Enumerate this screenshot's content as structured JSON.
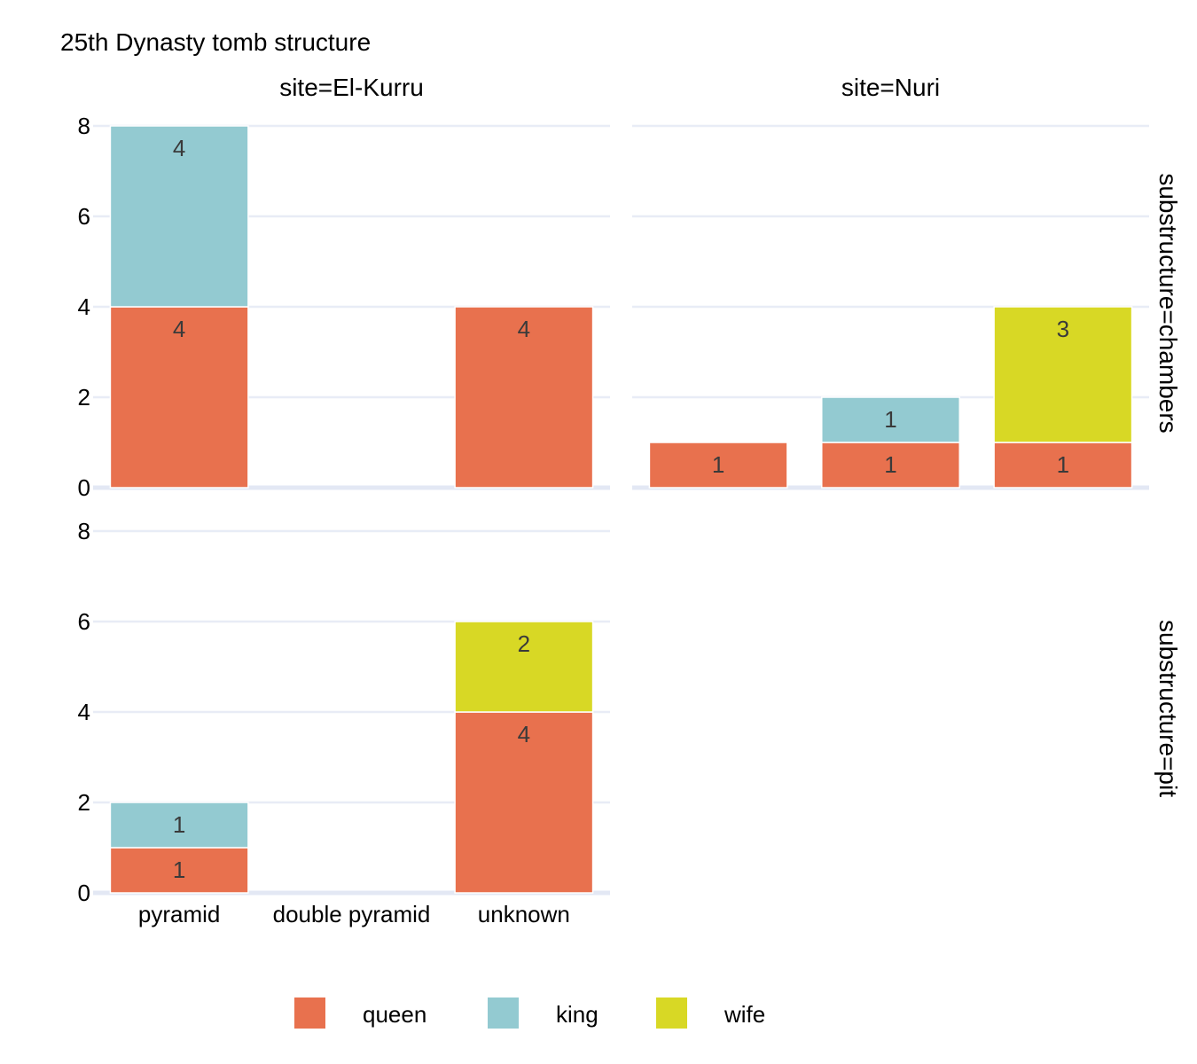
{
  "chart_data": {
    "type": "bar",
    "title": "25th Dynasty tomb structure",
    "stacked": true,
    "grid": true,
    "legend_position": "bottom",
    "categories": [
      "pyramid",
      "double pyramid",
      "unknown"
    ],
    "series_names": [
      "queen",
      "king",
      "wife"
    ],
    "colors": {
      "queen": "#e8714e",
      "king": "#93cad1",
      "wife": "#d8d825"
    },
    "ylim": [
      0,
      8
    ],
    "yticks": [
      0,
      2,
      4,
      6,
      8
    ],
    "columns": [
      {
        "label": "site=El-Kurru"
      },
      {
        "label": "site=Nuri"
      }
    ],
    "rows": [
      {
        "label": "substructure=chambers"
      },
      {
        "label": "substructure=pit"
      }
    ],
    "panels": [
      {
        "site": "site=El-Kurru",
        "substructure": "substructure=chambers",
        "series": [
          {
            "name": "queen",
            "values": [
              4,
              0,
              4
            ]
          },
          {
            "name": "king",
            "values": [
              4,
              0,
              0
            ]
          },
          {
            "name": "wife",
            "values": [
              0,
              0,
              0
            ]
          }
        ]
      },
      {
        "site": "site=Nuri",
        "substructure": "substructure=chambers",
        "series": [
          {
            "name": "queen",
            "values": [
              1,
              1,
              1
            ]
          },
          {
            "name": "king",
            "values": [
              0,
              1,
              0
            ]
          },
          {
            "name": "wife",
            "values": [
              0,
              0,
              3
            ]
          }
        ]
      },
      {
        "site": "site=El-Kurru",
        "substructure": "substructure=pit",
        "series": [
          {
            "name": "queen",
            "values": [
              1,
              0,
              4
            ]
          },
          {
            "name": "king",
            "values": [
              1,
              0,
              0
            ]
          },
          {
            "name": "wife",
            "values": [
              0,
              0,
              2
            ]
          }
        ]
      }
    ]
  }
}
